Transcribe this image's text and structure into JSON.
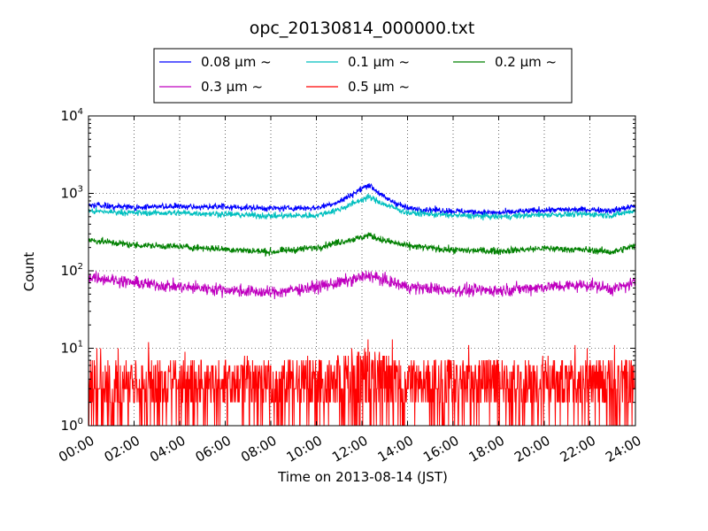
{
  "chart_data": {
    "type": "line",
    "title": "opc_20130814_000000.txt",
    "xlabel": "Time on 2013-08-14 (JST)",
    "ylabel": "Count",
    "x_ticks": [
      "00:00",
      "02:00",
      "04:00",
      "06:00",
      "08:00",
      "10:00",
      "12:00",
      "14:00",
      "16:00",
      "18:00",
      "20:00",
      "22:00",
      "24:00"
    ],
    "x_range_hours": [
      0,
      24
    ],
    "y_scale": "log",
    "y_range": [
      1,
      10000
    ],
    "y_ticks": [
      {
        "value": 1,
        "base": "10",
        "exp": "0"
      },
      {
        "value": 10,
        "base": "10",
        "exp": "1"
      },
      {
        "value": 100,
        "base": "10",
        "exp": "2"
      },
      {
        "value": 1000,
        "base": "10",
        "exp": "3"
      },
      {
        "value": 10000,
        "base": "10",
        "exp": "4"
      }
    ],
    "grid": true,
    "legend_position": "top-center",
    "series": [
      {
        "name": "0.08 μm ~",
        "color": "#0000ff",
        "noise": 0.045,
        "x_hours": [
          0,
          2,
          4,
          6,
          8,
          10,
          11,
          12,
          12.3,
          13,
          14,
          16,
          18,
          20,
          22,
          23,
          24
        ],
        "values": [
          700,
          660,
          680,
          670,
          640,
          650,
          780,
          1150,
          1300,
          880,
          640,
          590,
          560,
          610,
          620,
          600,
          690
        ]
      },
      {
        "name": "0.1 μm ~",
        "color": "#00bfbf",
        "noise": 0.045,
        "x_hours": [
          0,
          2,
          4,
          6,
          8,
          10,
          11,
          12,
          12.3,
          13,
          14,
          16,
          18,
          20,
          22,
          23,
          24
        ],
        "values": [
          590,
          560,
          560,
          540,
          510,
          520,
          620,
          830,
          900,
          720,
          560,
          520,
          500,
          530,
          540,
          520,
          600
        ]
      },
      {
        "name": "0.2 μm ~",
        "color": "#008000",
        "noise": 0.05,
        "x_hours": [
          0,
          2,
          4,
          6,
          8,
          10,
          11,
          12,
          12.3,
          13,
          14,
          16,
          18,
          20,
          22,
          23,
          24
        ],
        "values": [
          250,
          215,
          205,
          190,
          175,
          200,
          235,
          270,
          290,
          245,
          210,
          185,
          180,
          195,
          185,
          175,
          210
        ]
      },
      {
        "name": "0.3 μm ~",
        "color": "#bf00bf",
        "noise": 0.09,
        "x_hours": [
          0,
          2,
          4,
          6,
          8,
          10,
          11,
          12,
          12.3,
          13,
          14,
          16,
          18,
          20,
          22,
          23,
          24
        ],
        "values": [
          85,
          70,
          62,
          57,
          52,
          62,
          70,
          82,
          88,
          75,
          62,
          56,
          56,
          62,
          66,
          58,
          70
        ]
      },
      {
        "name": "0.5 μm ~",
        "color": "#ff0000",
        "noise": 0.3,
        "min": 1,
        "max": 19,
        "x_hours": [
          0,
          2,
          4,
          6,
          8,
          10,
          11,
          12,
          12.3,
          13,
          14,
          16,
          18,
          20,
          22,
          23,
          24
        ],
        "values": [
          5,
          5,
          5,
          5,
          5,
          5,
          5.5,
          6.5,
          7,
          6,
          5,
          5,
          5,
          5,
          5,
          5,
          5
        ]
      }
    ]
  }
}
